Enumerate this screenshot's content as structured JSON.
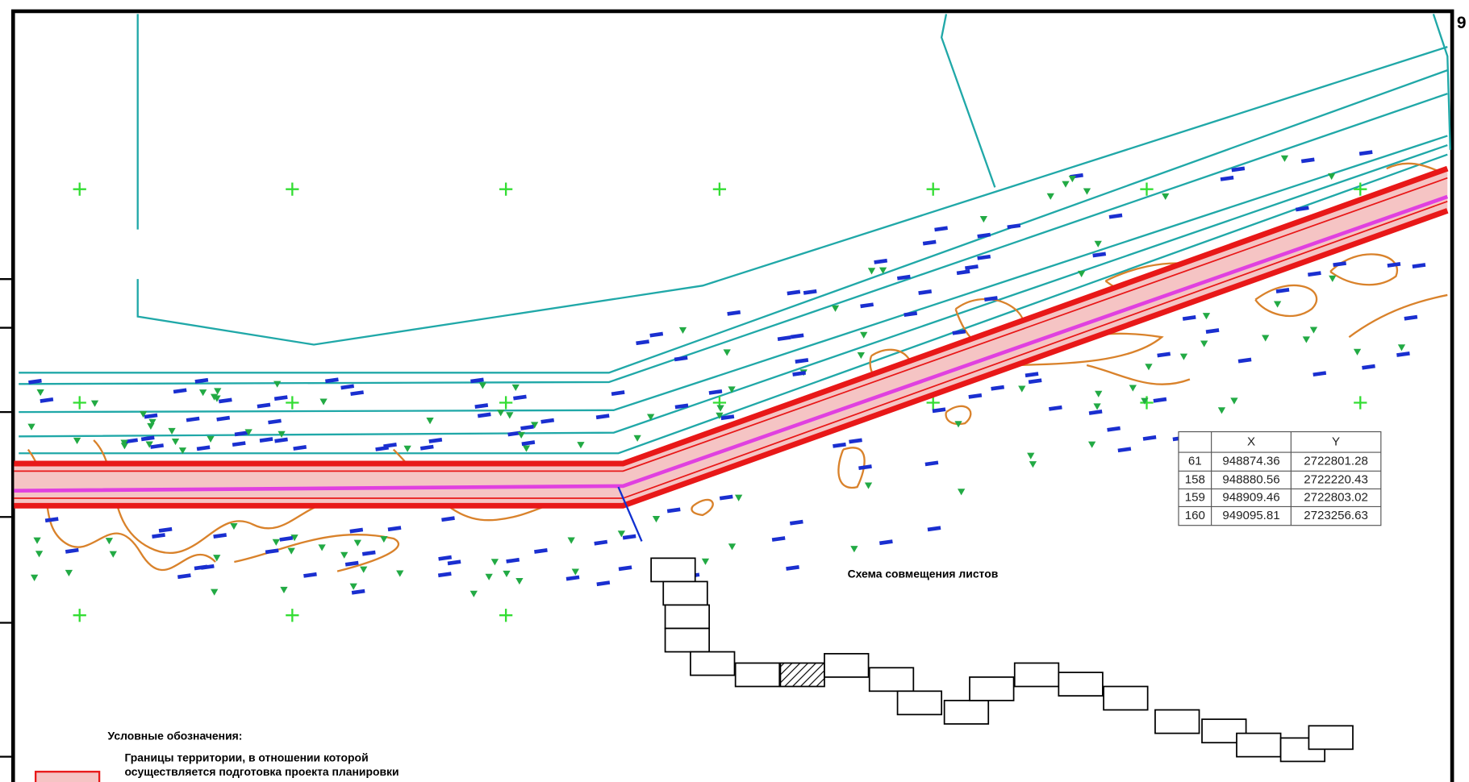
{
  "page_number": "9",
  "scheme_title": "Схема совмещения листов",
  "table": {
    "header": [
      "X",
      "Y"
    ],
    "rows": [
      [
        "61",
        "948874.36",
        "2722801.28"
      ],
      [
        "158",
        "948880.56",
        "2722220.43"
      ],
      [
        "159",
        "948909.46",
        "2722803.02"
      ],
      [
        "160",
        "949095.81",
        "2723256.63"
      ]
    ]
  },
  "legend": {
    "title": "Условные обозначения:",
    "items": [
      {
        "text_lines": [
          "Границы территории, в отношении которой",
          "осуществляется подготовка проекта планировки"
        ]
      }
    ]
  }
}
